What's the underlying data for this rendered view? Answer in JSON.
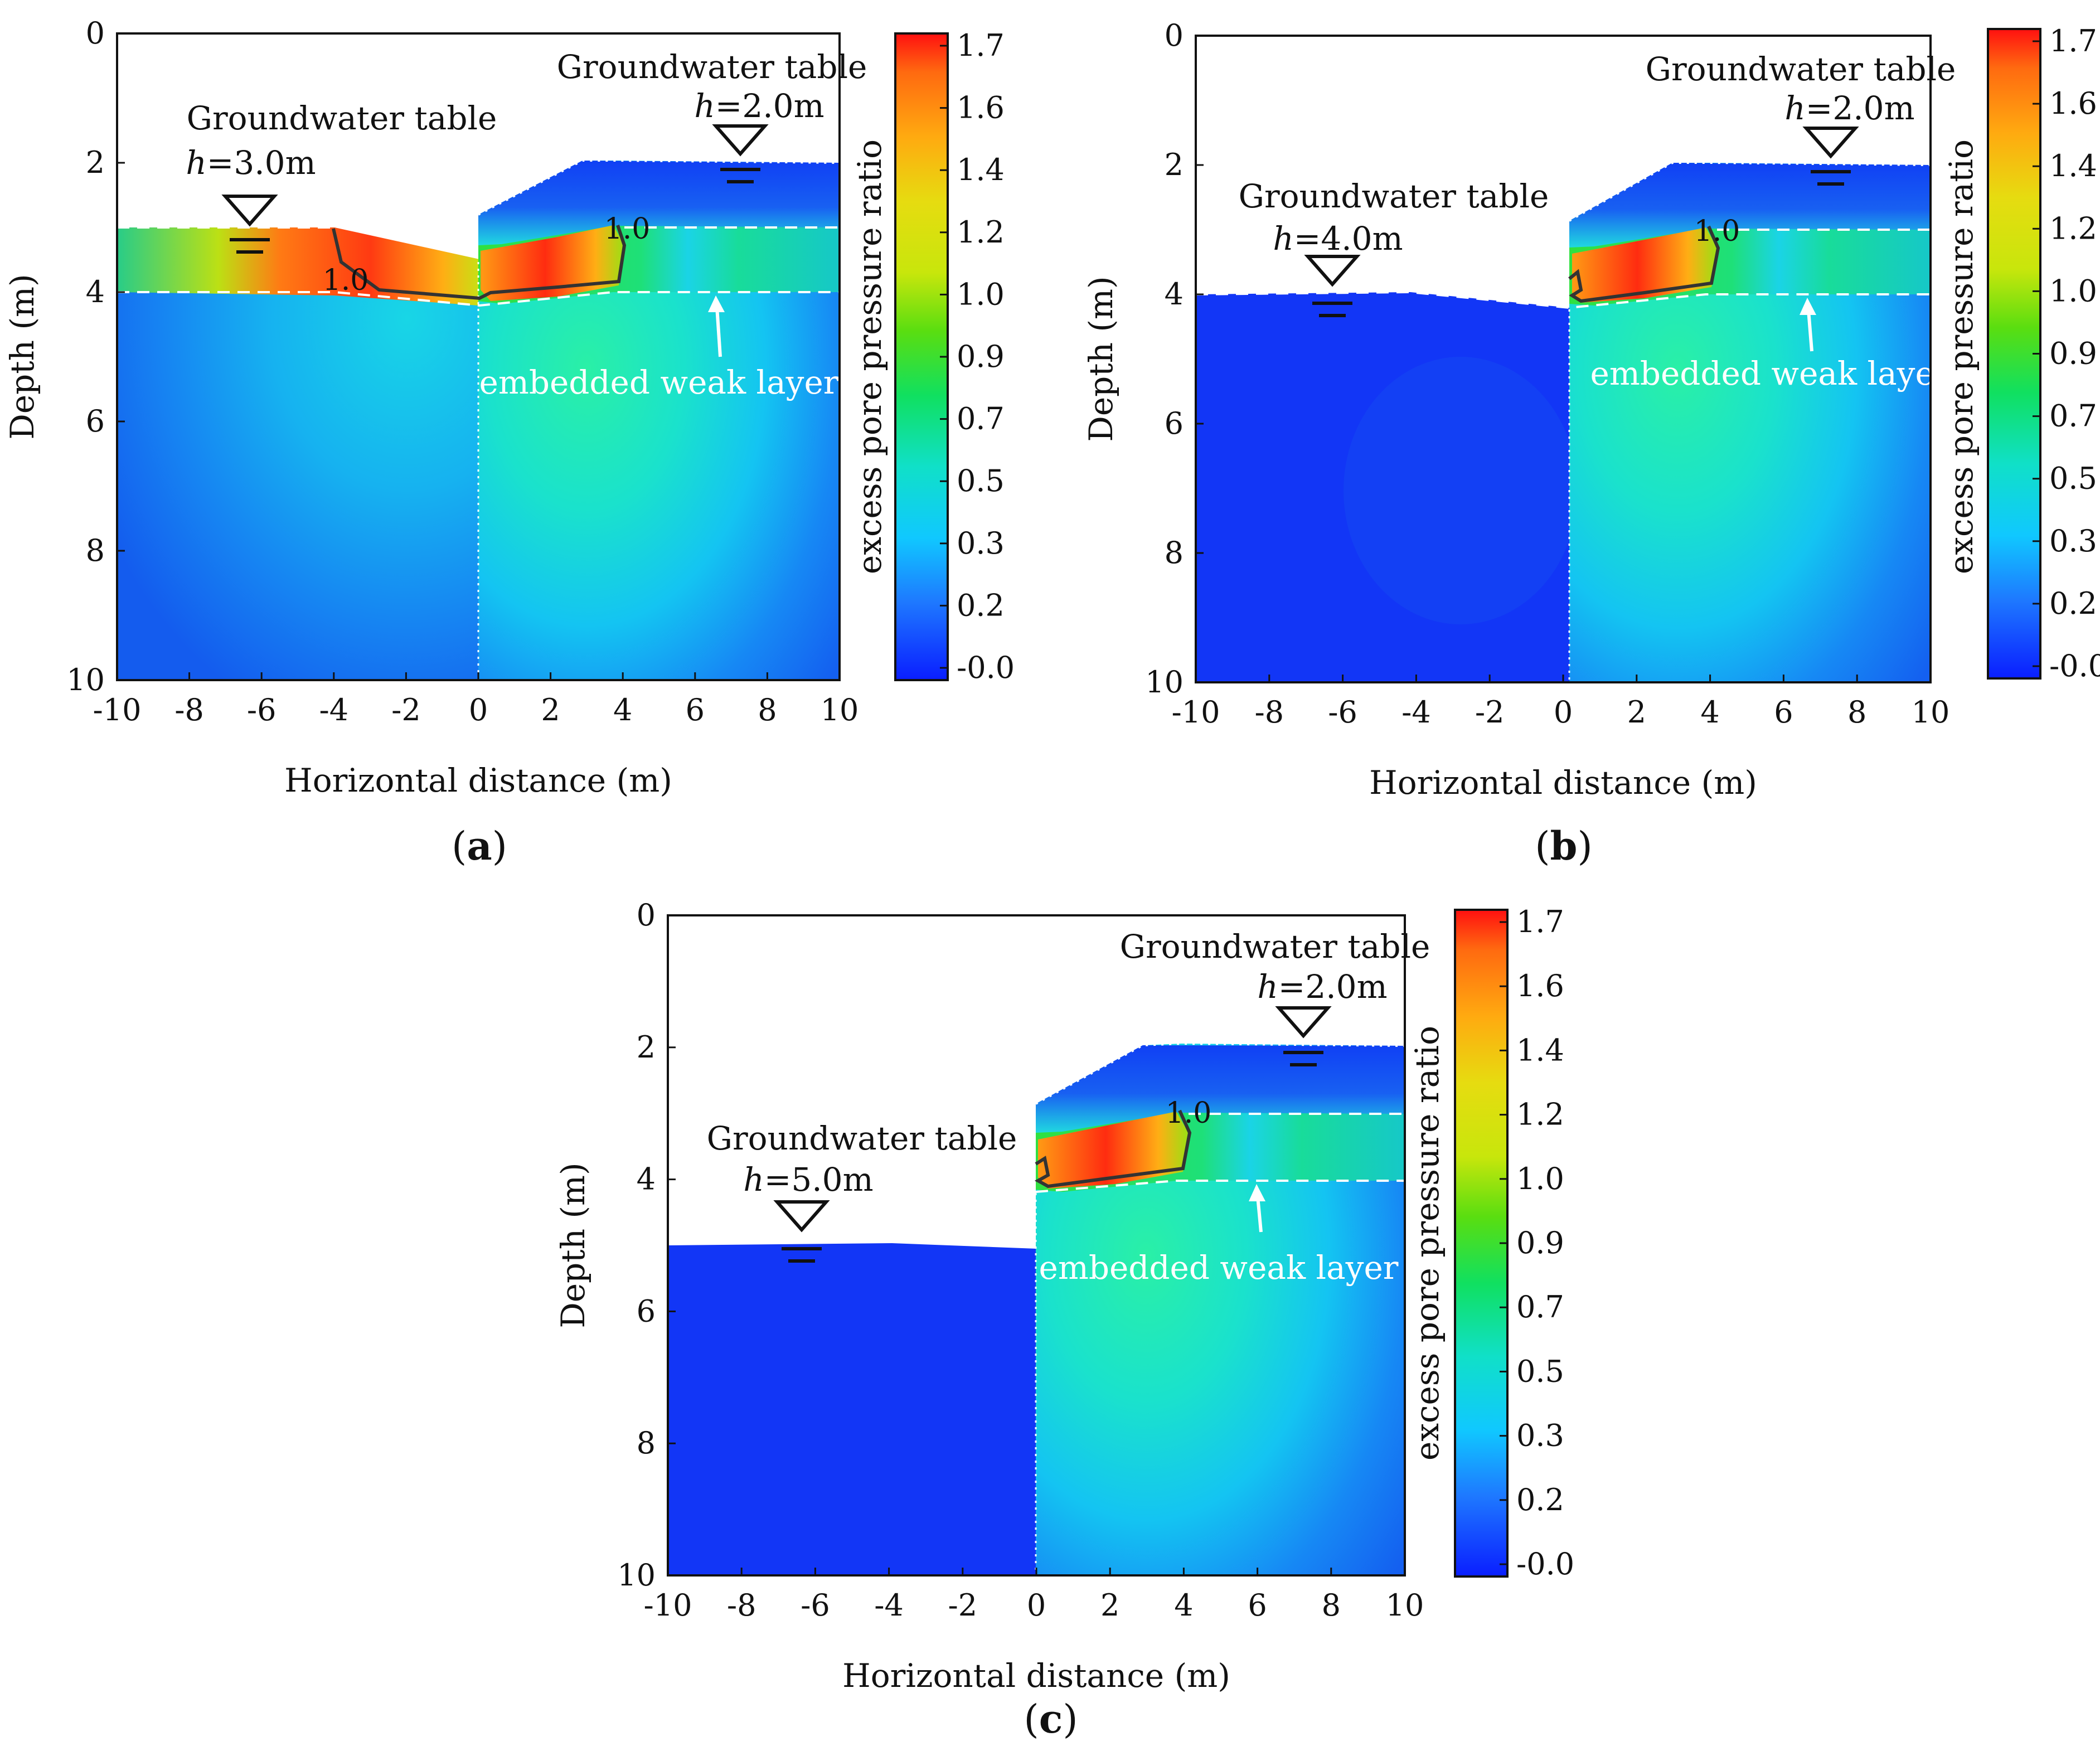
{
  "chart_data": {
    "type": "heatmap",
    "x_ticks": [
      -10,
      -8,
      -6,
      -4,
      -2,
      0,
      2,
      4,
      6,
      8,
      10
    ],
    "y_ticks": [
      0,
      2,
      4,
      6,
      8,
      10
    ],
    "xlim": [
      -10,
      10
    ],
    "ylim": [
      0,
      10
    ],
    "xlabel": "Horizontal distance  (m)",
    "ylabel": "Depth (m)",
    "colorbar": {
      "label": "excess pore pressure ratio",
      "ticks": [
        1.7,
        1.6,
        1.4,
        1.2,
        1.0,
        0.9,
        0.7,
        0.5,
        0.3,
        0.2,
        -0.0
      ],
      "tick_labels": [
        "1.7",
        "1.6",
        "1.4",
        "1.2",
        "1.0",
        "0.9",
        "0.7",
        "0.5",
        "0.3",
        "0.2",
        "-0.0"
      ],
      "colors": [
        "#ff1010",
        "#ff6a10",
        "#ffaa10",
        "#e6dc10",
        "#c8e60c",
        "#5ade10",
        "#10e060",
        "#10e0c8",
        "#10c8ff",
        "#1e78ff",
        "#0a1eff"
      ]
    },
    "contour_label": "1.0",
    "weak_layer_label": "embedded weak layer",
    "right_side": {
      "groundwater_table_label": "Groundwater table",
      "h_var": "h",
      "h_value": "=2.0m",
      "water_depth": 2.0
    },
    "panels": [
      {
        "id": "a",
        "label": "(a)",
        "left_water_label": "Groundwater table",
        "h_var": "h",
        "h_value": "=3.0m",
        "left_water_depth": 3.0
      },
      {
        "id": "b",
        "label": "(b)",
        "left_water_label": "Groundwater table",
        "h_var": "h",
        "h_value": "=4.0m",
        "left_water_depth": 4.0
      },
      {
        "id": "c",
        "label": "(c)",
        "left_water_label": "Groundwater table",
        "h_var": "h",
        "h_value": "=5.0m",
        "left_water_depth": 5.0
      }
    ]
  }
}
